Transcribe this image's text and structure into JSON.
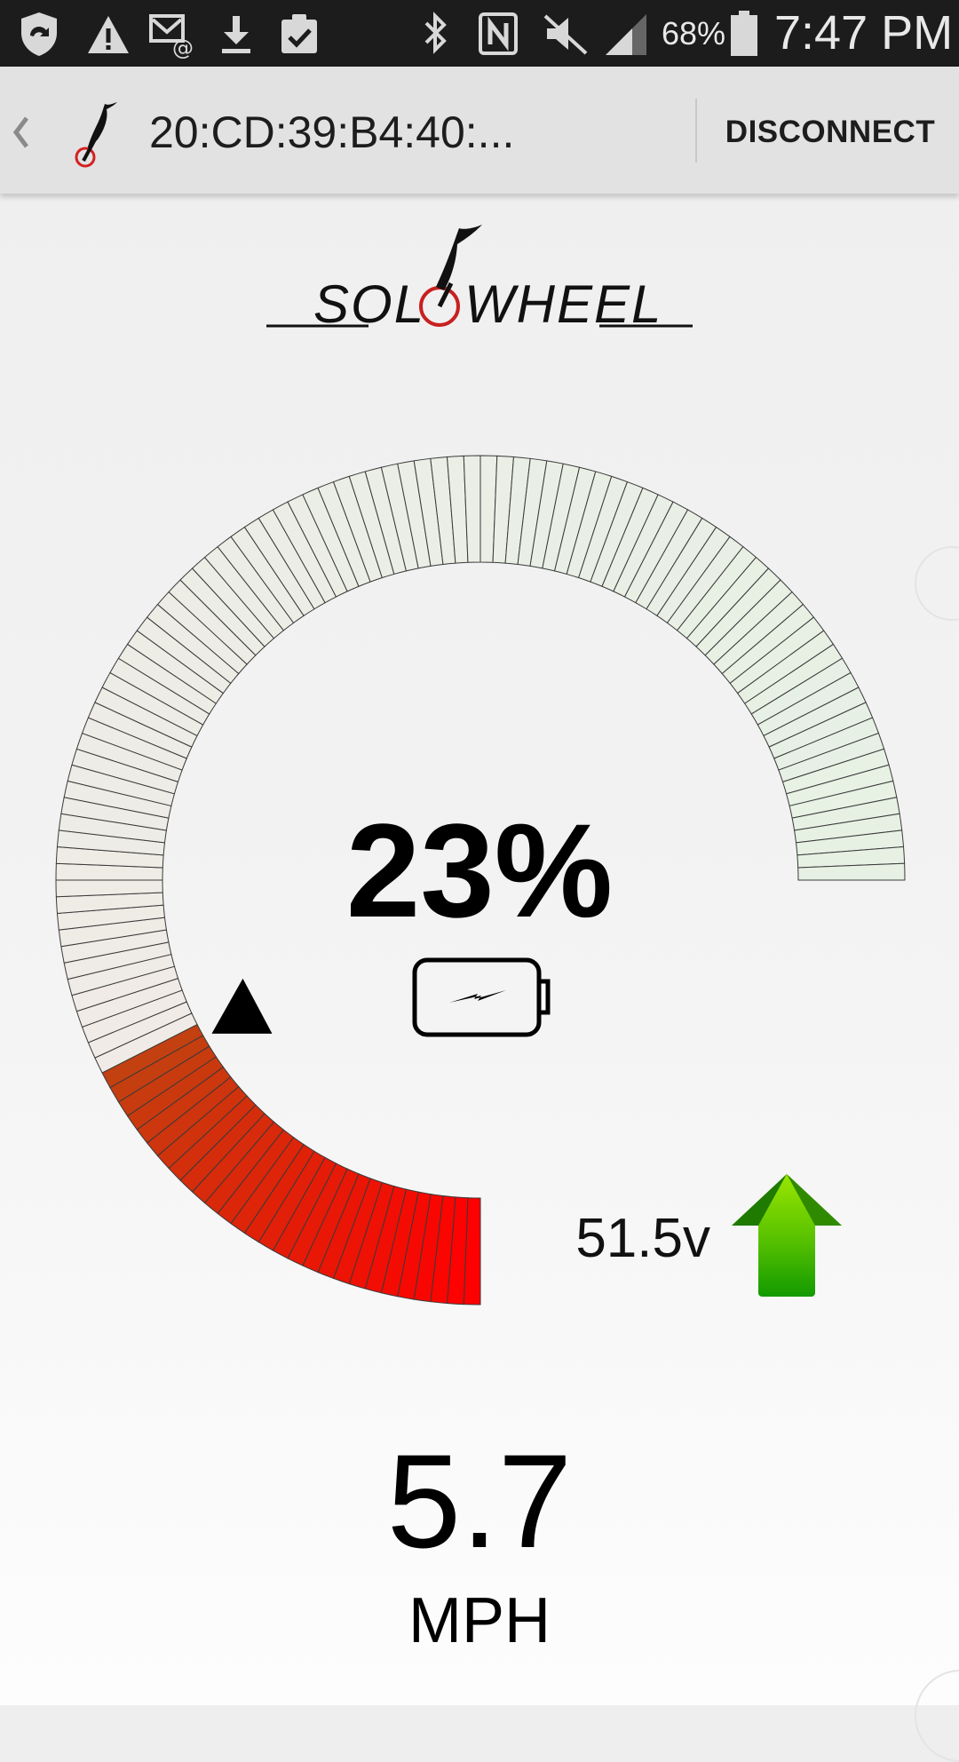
{
  "status_bar": {
    "battery_percent": "68%",
    "time": "7:47 PM",
    "icons": [
      "shield-sync-icon",
      "warning-icon",
      "email-notification-icon",
      "download-icon",
      "clipboard-check-icon",
      "bluetooth-icon",
      "nfc-icon",
      "vibrate-off-icon",
      "signal-icon",
      "battery-icon"
    ]
  },
  "action_bar": {
    "device_name": "20:CD:39:B4:40:...",
    "disconnect_label": "DISCONNECT"
  },
  "logo": {
    "text": "SOLOWHEEL"
  },
  "gauge": {
    "battery_percent": "23%",
    "level": 0.23,
    "colors": {
      "low": "#ff0000",
      "low_end": "#c34010",
      "empty_start": "#f0ebe6",
      "empty_end": "#e6f1e4"
    }
  },
  "voltage": {
    "value": "51.5v",
    "trend": "up",
    "arrow_color": "#33aa00"
  },
  "speed": {
    "value": "5.7",
    "unit": "MPH"
  }
}
